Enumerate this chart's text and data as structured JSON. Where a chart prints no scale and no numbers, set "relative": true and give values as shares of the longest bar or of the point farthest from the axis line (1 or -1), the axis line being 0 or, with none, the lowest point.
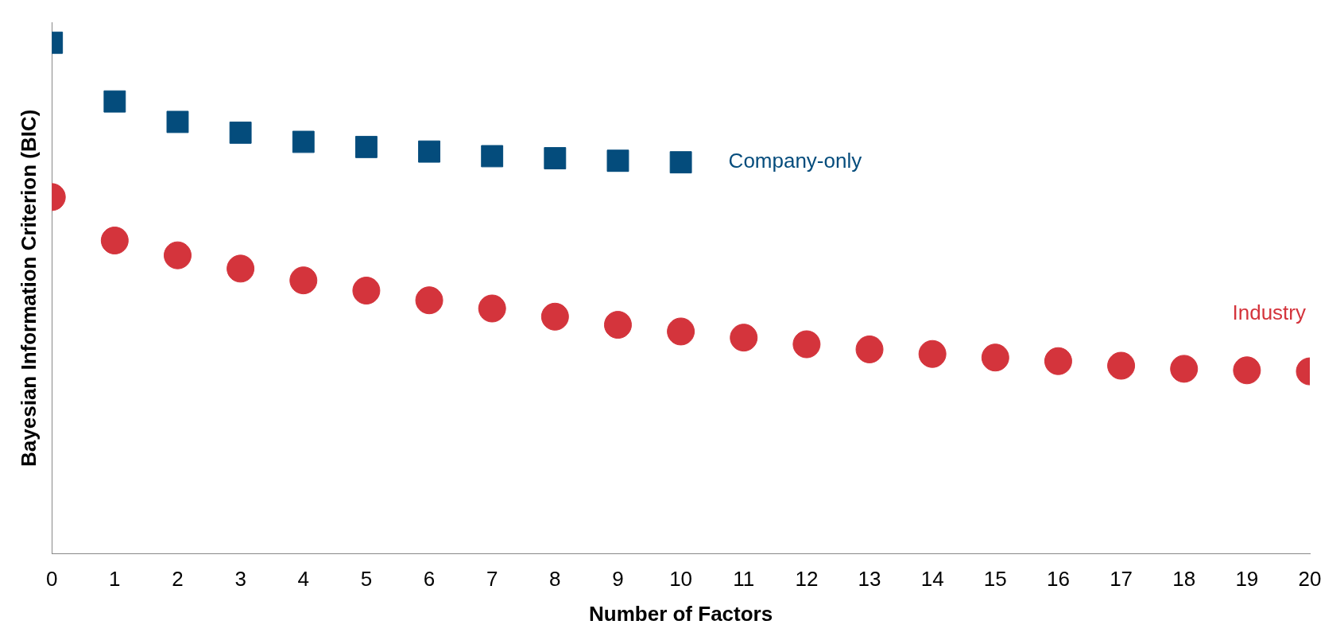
{
  "chart_data": {
    "type": "scatter",
    "xlabel": "Number of Factors",
    "ylabel": "Bayesian Information Criterion (BIC)",
    "relative": true,
    "grid": false,
    "legend": false,
    "x": [
      0,
      1,
      2,
      3,
      4,
      5,
      6,
      7,
      8,
      9,
      10,
      11,
      12,
      13,
      14,
      15,
      16,
      17,
      18,
      19,
      20
    ],
    "xlim": [
      0,
      20
    ],
    "xticks": [
      0,
      1,
      2,
      3,
      4,
      5,
      6,
      7,
      8,
      9,
      10,
      11,
      12,
      13,
      14,
      15,
      16,
      17,
      18,
      19,
      20
    ],
    "series": [
      {
        "name": "Company-only",
        "color": "#044c7c",
        "marker": "square",
        "values": [
          1,
          0.885,
          0.845,
          0.824,
          0.806,
          0.796,
          0.787,
          0.778,
          0.774,
          0.769,
          0.766,
          null,
          null,
          null,
          null,
          null,
          null,
          null,
          null,
          null,
          null
        ]
      },
      {
        "name": "Industry",
        "color": "#d4343c",
        "marker": "circle",
        "values": [
          0.698,
          0.613,
          0.584,
          0.558,
          0.535,
          0.515,
          0.496,
          0.48,
          0.464,
          0.448,
          0.435,
          0.423,
          0.41,
          0.4,
          0.391,
          0.384,
          0.377,
          0.368,
          0.362,
          0.359,
          0.357
        ]
      }
    ]
  }
}
